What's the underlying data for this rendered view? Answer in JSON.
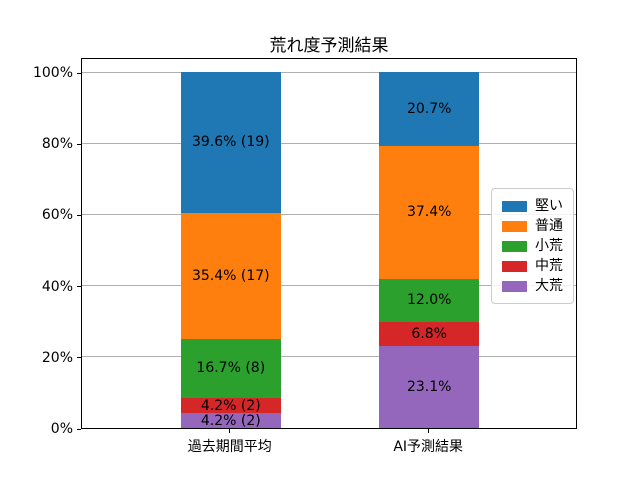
{
  "chart_data": {
    "type": "bar",
    "stacked": true,
    "orientation": "vertical",
    "title": "荒れ度予測結果",
    "categories": [
      "過去期間平均",
      "AI予測結果"
    ],
    "ylim": [
      0,
      100
    ],
    "ytick_values": [
      0,
      20,
      40,
      60,
      80,
      100
    ],
    "ytick_labels": [
      "0%",
      "20%",
      "40%",
      "60%",
      "80%",
      "100%"
    ],
    "grid": true,
    "series_bottom_to_top": [
      {
        "name": "大荒",
        "color": "#9467bd",
        "values": [
          4.2,
          23.1
        ],
        "segment_labels": [
          "4.2% (2)",
          "23.1%"
        ]
      },
      {
        "name": "中荒",
        "color": "#d62728",
        "values": [
          4.2,
          6.8
        ],
        "segment_labels": [
          "4.2% (2)",
          "6.8%"
        ]
      },
      {
        "name": "小荒",
        "color": "#2ca02c",
        "values": [
          16.7,
          12.0
        ],
        "segment_labels": [
          "16.7% (8)",
          "12.0%"
        ]
      },
      {
        "name": "普通",
        "color": "#ff7f0e",
        "values": [
          35.4,
          37.4
        ],
        "segment_labels": [
          "35.4% (17)",
          "37.4%"
        ]
      },
      {
        "name": "堅い",
        "color": "#1f77b4",
        "values": [
          39.6,
          20.7
        ],
        "segment_labels": [
          "39.6% (19)",
          "20.7%"
        ]
      }
    ],
    "legend": {
      "position": "center-right",
      "labels_top_to_bottom": [
        "堅い",
        "普通",
        "小荒",
        "中荒",
        "大荒"
      ]
    }
  }
}
